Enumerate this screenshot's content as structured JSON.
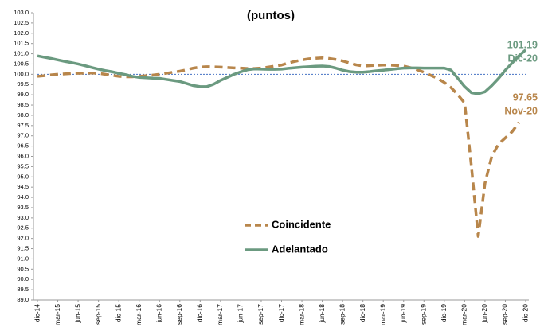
{
  "chart_data": {
    "type": "line",
    "title": "(puntos)",
    "categories": [
      "dic-14",
      null,
      null,
      "mar-15",
      null,
      null,
      "jun-15",
      null,
      null,
      "sep-15",
      null,
      null,
      "dic-15",
      null,
      null,
      "mar-16",
      null,
      null,
      "jun-16",
      null,
      null,
      "sep-16",
      null,
      null,
      "dic-16",
      null,
      null,
      "mar-17",
      null,
      null,
      "jun-17",
      null,
      null,
      "sep-17",
      null,
      null,
      "dic-17",
      null,
      null,
      "mar-18",
      null,
      null,
      "jun-18",
      null,
      null,
      "sep-18",
      null,
      null,
      "dic-18",
      null,
      null,
      "mar-19",
      null,
      null,
      "jun-19",
      null,
      null,
      "sep-19",
      null,
      null,
      "dic-19",
      null,
      null,
      "mar-20",
      null,
      null,
      "jun-20",
      null,
      null,
      "sep-20",
      null,
      null,
      "dic-20"
    ],
    "series": [
      {
        "name": "Coincidente",
        "color": "#b8864b",
        "dashed": true,
        "values": [
          99.9,
          99.93,
          99.97,
          100.0,
          100.02,
          100.04,
          100.05,
          100.06,
          100.06,
          100.05,
          100.0,
          99.95,
          99.9,
          99.88,
          99.88,
          99.9,
          99.93,
          99.96,
          100.0,
          100.05,
          100.1,
          100.15,
          100.22,
          100.3,
          100.35,
          100.37,
          100.36,
          100.35,
          100.33,
          100.31,
          100.3,
          100.28,
          100.28,
          100.3,
          100.35,
          100.4,
          100.45,
          100.55,
          100.63,
          100.7,
          100.75,
          100.78,
          100.8,
          100.77,
          100.72,
          100.65,
          100.55,
          100.46,
          100.4,
          100.42,
          100.44,
          100.45,
          100.45,
          100.43,
          100.4,
          100.32,
          100.22,
          100.1,
          99.95,
          99.8,
          99.6,
          99.35,
          99.0,
          98.6,
          95.5,
          92.1,
          94.7,
          96.0,
          96.6,
          96.9,
          97.2,
          97.65,
          null
        ]
      },
      {
        "name": "Adelantado",
        "color": "#6b9a80",
        "dashed": false,
        "values": [
          100.9,
          100.83,
          100.77,
          100.7,
          100.63,
          100.57,
          100.5,
          100.42,
          100.33,
          100.25,
          100.18,
          100.12,
          100.05,
          99.98,
          99.9,
          99.85,
          99.83,
          99.81,
          99.8,
          99.75,
          99.7,
          99.65,
          99.55,
          99.45,
          99.4,
          99.4,
          99.52,
          99.7,
          99.85,
          100.0,
          100.12,
          100.22,
          100.26,
          100.25,
          100.24,
          100.24,
          100.25,
          100.29,
          100.32,
          100.35,
          100.37,
          100.39,
          100.4,
          100.38,
          100.3,
          100.2,
          100.13,
          100.1,
          100.1,
          100.13,
          100.17,
          100.2,
          100.23,
          100.27,
          100.3,
          100.31,
          100.31,
          100.3,
          100.3,
          100.3,
          100.3,
          100.2,
          99.8,
          99.4,
          99.1,
          99.05,
          99.15,
          99.45,
          99.8,
          100.2,
          100.55,
          100.9,
          101.19
        ]
      }
    ],
    "ylim": [
      89.0,
      103.0
    ],
    "yticks": [
      {
        "value": 89,
        "label": "89.0"
      },
      {
        "value": 89.5,
        "label": "89.5"
      },
      {
        "value": 90,
        "label": "90.0"
      },
      {
        "value": 90.5,
        "label": "90.5"
      },
      {
        "value": 91,
        "label": "91.0"
      },
      {
        "value": 91.5,
        "label": "91.5"
      },
      {
        "value": 92,
        "label": "92.0"
      },
      {
        "value": 92.5,
        "label": "92.5"
      },
      {
        "value": 93,
        "label": "93.0"
      },
      {
        "value": 93.5,
        "label": "93.5"
      },
      {
        "value": 94,
        "label": "94.0"
      },
      {
        "value": 94.5,
        "label": "94.5"
      },
      {
        "value": 95,
        "label": "95.0"
      },
      {
        "value": 95.5,
        "label": "95.5"
      },
      {
        "value": 96,
        "label": "96.0"
      },
      {
        "value": 96.5,
        "label": "96.5"
      },
      {
        "value": 97,
        "label": "97.0"
      },
      {
        "value": 97.5,
        "label": "97.5"
      },
      {
        "value": 98,
        "label": "98.0"
      },
      {
        "value": 98.5,
        "label": "98.5"
      },
      {
        "value": 99,
        "label": "99.0"
      },
      {
        "value": 99.5,
        "label": "99.5"
      },
      {
        "value": 100,
        "label": "100.0"
      },
      {
        "value": 100.5,
        "label": "100.5"
      },
      {
        "value": 101,
        "label": "101.0"
      },
      {
        "value": 101.5,
        "label": "101.5"
      },
      {
        "value": 102,
        "label": "102.0"
      },
      {
        "value": 102.5,
        "label": "102.5"
      },
      {
        "value": 103,
        "label": "103.0"
      }
    ],
    "reference_line": 100,
    "reference_color": "#4472c4",
    "annotations": [
      "101.19",
      "Dic-20",
      "97.65",
      "Nov-20"
    ]
  }
}
